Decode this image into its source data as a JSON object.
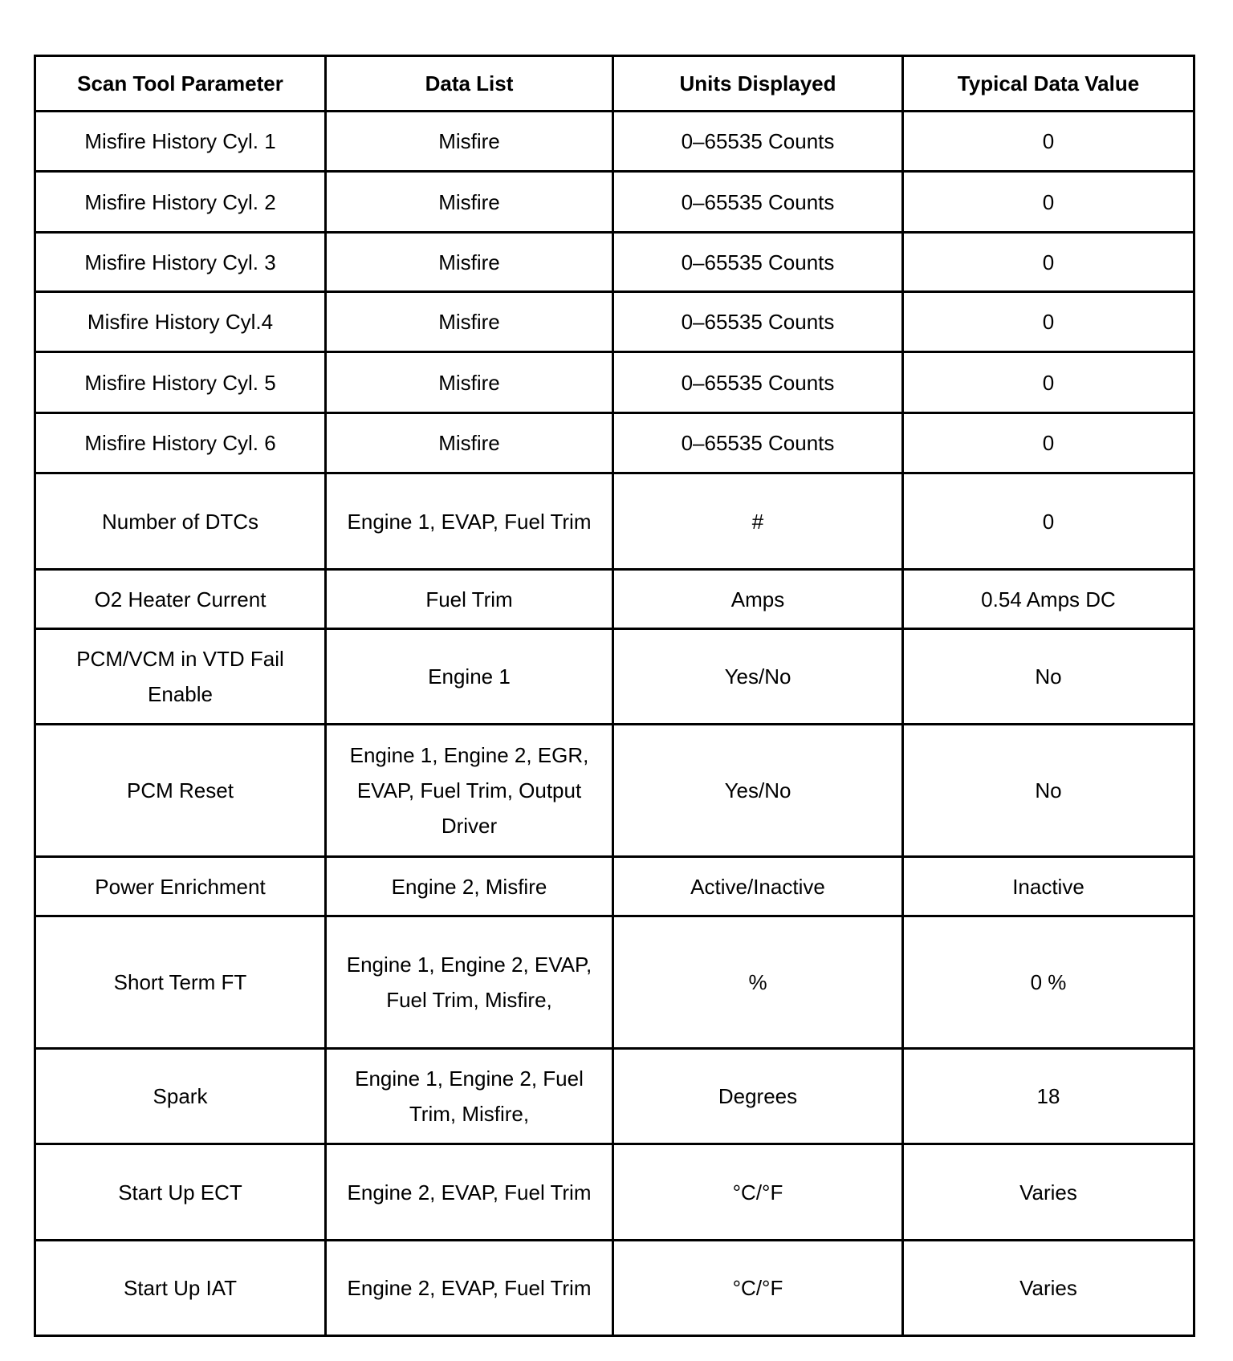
{
  "table": {
    "headers": [
      "Scan Tool Parameter",
      "Data List",
      "Units Displayed",
      "Typical Data Value"
    ],
    "rows": [
      [
        "Misfire History Cyl. 1",
        "Misfire",
        "0–65535 Counts",
        "0"
      ],
      [
        "Misfire History Cyl. 2",
        "Misfire",
        "0–65535 Counts",
        "0"
      ],
      [
        "Misfire History Cyl. 3",
        "Misfire",
        "0–65535 Counts",
        "0"
      ],
      [
        "Misfire History Cyl.4",
        "Misfire",
        "0–65535 Counts",
        "0"
      ],
      [
        "Misfire History Cyl. 5",
        "Misfire",
        "0–65535 Counts",
        "0"
      ],
      [
        "Misfire History Cyl. 6",
        "Misfire",
        "0–65535 Counts",
        "0"
      ],
      [
        "Number of DTCs",
        "Engine 1, EVAP, Fuel Trim",
        "#",
        "0"
      ],
      [
        "O2 Heater Current",
        "Fuel Trim",
        "Amps",
        "0.54 Amps DC"
      ],
      [
        "PCM/VCM in VTD Fail Enable",
        "Engine 1",
        "Yes/No",
        "No"
      ],
      [
        "PCM Reset",
        "Engine 1, Engine 2, EGR, EVAP, Fuel Trim, Output Driver",
        "Yes/No",
        "No"
      ],
      [
        "Power Enrichment",
        "Engine 2, Misfire",
        "Active/Inactive",
        "Inactive"
      ],
      [
        "Short Term FT",
        "Engine 1, Engine 2, EVAP, Fuel Trim, Misfire,",
        "%",
        "0 %"
      ],
      [
        "Spark",
        "Engine 1, Engine 2, Fuel Trim, Misfire,",
        "Degrees",
        "18"
      ],
      [
        "Start Up ECT",
        "Engine 2, EVAP, Fuel Trim",
        "°C/°F",
        "Varies"
      ],
      [
        "Start Up IAT",
        "Engine 2, EVAP, Fuel Trim",
        "°C/°F",
        "Varies"
      ]
    ]
  }
}
